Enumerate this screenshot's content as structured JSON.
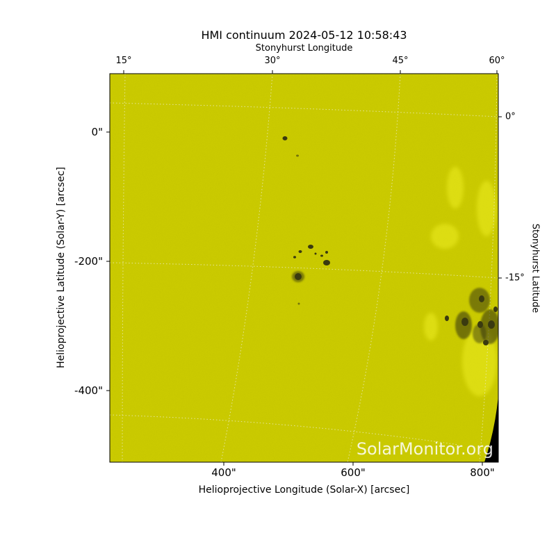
{
  "title": "HMI continuum 2024-05-12 10:58:43",
  "axes": {
    "x_label": "Helioprojective Longitude (Solar-X) [arcsec]",
    "y_label": "Helioprojective Latitude (Solar-Y) [arcsec]",
    "top_label": "Stonyhurst Longitude",
    "right_label": "Stonyhurst Latitude",
    "x_ticks": [
      "400\"",
      "600\"",
      "800\""
    ],
    "y_ticks": [
      "0\"",
      "-200\"",
      "-400\""
    ],
    "top_ticks": [
      "15°",
      "30°",
      "45°",
      "60°"
    ],
    "right_ticks": [
      "0°",
      "-15°"
    ]
  },
  "watermark": "SolarMonitor.org",
  "colors": {
    "disk": "#cccc00",
    "space": "#000000",
    "spot": "#3a3a10"
  }
}
